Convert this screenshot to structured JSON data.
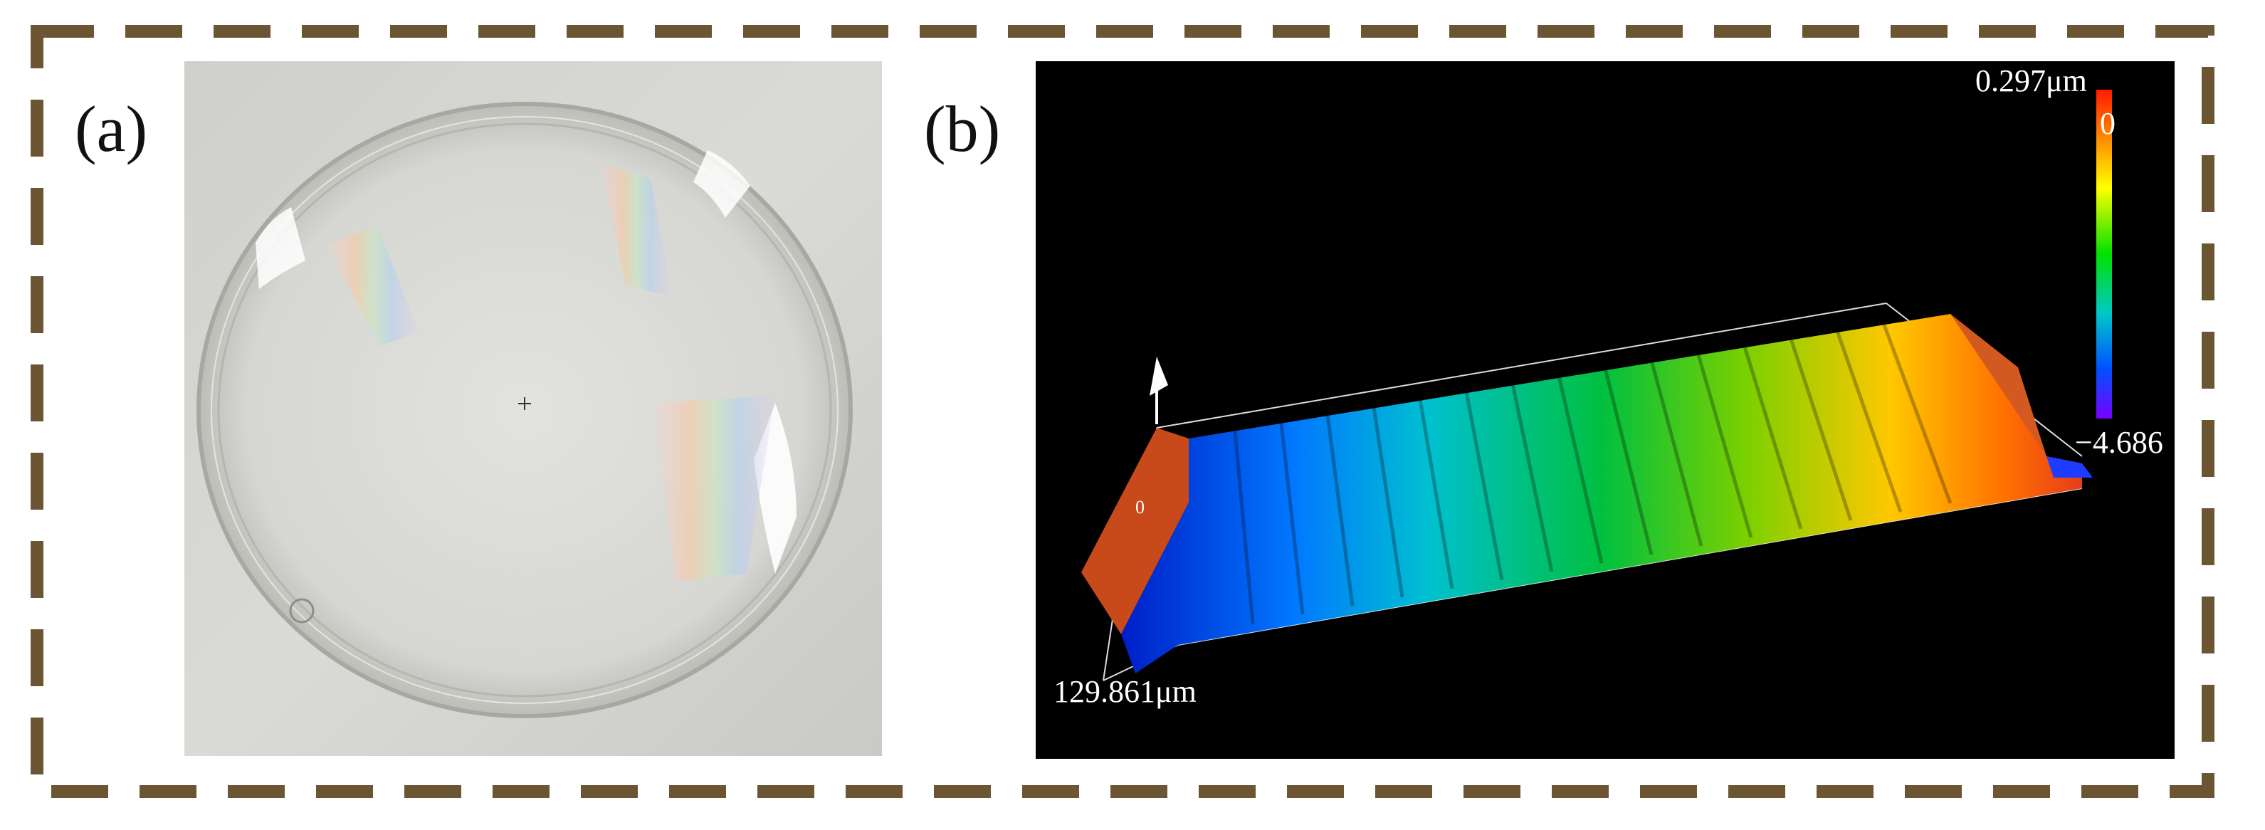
{
  "panels": {
    "a": {
      "label": "(a)"
    },
    "b": {
      "label": "(b)"
    }
  },
  "profile": {
    "colorbar": {
      "max_label": "0.297μm",
      "zero_label": "0",
      "min_label": "−4.686",
      "colors_top_to_bottom": [
        "#ff1a00",
        "#ff8c00",
        "#ffff00",
        "#00e000",
        "#00c8c8",
        "#0050ff",
        "#7a00ff"
      ]
    },
    "axis_length_label": "129.861μm",
    "surface_zero_label": "0",
    "background_color": "#000000"
  },
  "frame": {
    "border_color": "#6b5533"
  }
}
